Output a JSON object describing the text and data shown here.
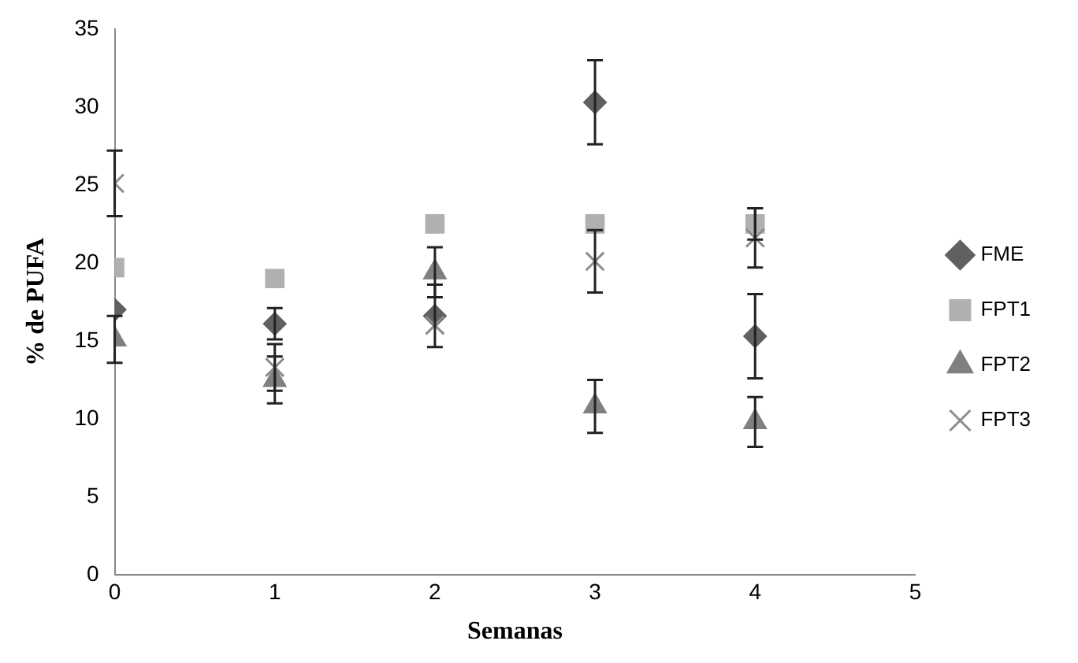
{
  "chart_data": {
    "type": "scatter",
    "xlabel": "Semanas",
    "ylabel": "% de PUFA",
    "x": [
      0,
      1,
      2,
      3,
      4
    ],
    "series": [
      {
        "name": "FME",
        "color": "#606060",
        "marker": "diamond",
        "values": [
          17.0,
          16.1,
          16.6,
          30.3,
          15.3
        ],
        "errors": [
          null,
          1.0,
          2.0,
          2.7,
          2.7
        ]
      },
      {
        "name": "FPT1",
        "color": "#b0b0b0",
        "marker": "square",
        "values": [
          19.7,
          19.0,
          22.5,
          22.5,
          22.5
        ],
        "errors": [
          null,
          null,
          null,
          null,
          1.0
        ]
      },
      {
        "name": "FPT2",
        "color": "#808080",
        "marker": "triangle",
        "values": [
          15.1,
          12.5,
          19.4,
          10.8,
          9.8
        ],
        "errors": [
          1.5,
          1.5,
          1.6,
          1.7,
          1.6
        ]
      },
      {
        "name": "FPT3",
        "color": "#8c8c8c",
        "marker": "cross",
        "values": [
          25.1,
          13.3,
          16.0,
          20.1,
          21.6
        ],
        "errors": [
          2.1,
          1.5,
          null,
          2.0,
          1.9
        ]
      }
    ],
    "xlim": [
      0,
      5
    ],
    "xticks": [
      0,
      1,
      2,
      3,
      4,
      5
    ],
    "ylim": [
      0,
      35
    ],
    "yticks": [
      0,
      5,
      10,
      15,
      20,
      25,
      30,
      35
    ],
    "grid": false,
    "legend": "right"
  }
}
